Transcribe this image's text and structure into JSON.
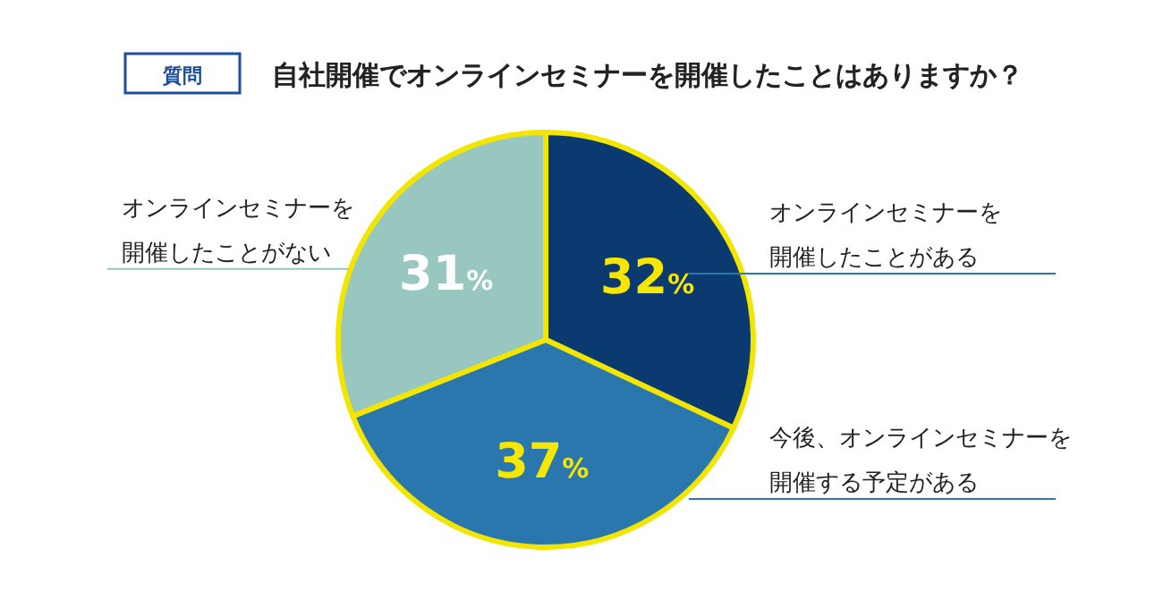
{
  "chart_data": {
    "type": "pie",
    "title": "自社開催でオンラインセミナーを開催したことはありますか？",
    "annotations": [
      "質問"
    ],
    "categories": [
      "オンラインセミナーを開催したことがある",
      "今後、オンラインセミナーを開催する予定がある",
      "オンラインセミナーを開催したことがない"
    ],
    "values": [
      32,
      37,
      31
    ],
    "colors": [
      "#0b3a70",
      "#2a77ae",
      "#97c7bf"
    ],
    "value_labels": [
      "32%",
      "37%",
      "31%"
    ]
  }
}
